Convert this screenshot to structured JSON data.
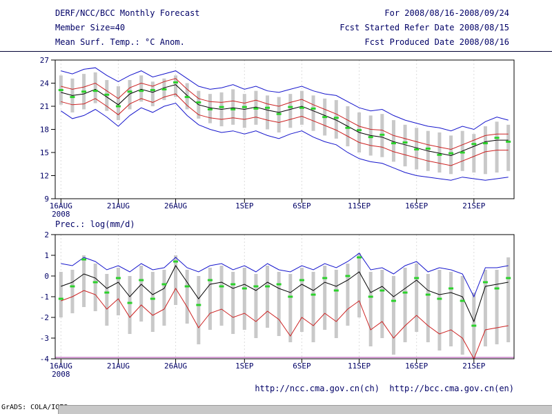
{
  "header": {
    "title": "DERF/NCC/BCC Monthly Forecast",
    "member_size": "Member Size=40",
    "for_range": "For 2008/08/16-2008/09/24",
    "fcst_start": "Fcst Started Refer Date 2008/08/15",
    "fcst_produced": "Fcst Produced Date 2008/08/16"
  },
  "footer": {
    "urls": "http://ncc.cma.gov.cn(ch)  http://bcc.cma.gov.cn(en)",
    "credit": "GrADS: COLA/IGES"
  },
  "colors": {
    "text": "#000066",
    "envelope_blue": "#1414cc",
    "quartile_red": "#cc2020",
    "mean_black": "#000000",
    "marker_green": "#2bd12b",
    "bar_gray": "#c9c9c9",
    "baseline_purple": "#aa3aaa",
    "gridline": "#dcdcdc"
  },
  "chart_data": [
    {
      "type": "line",
      "title": "Mean Surf. Temp.: °C Anom.",
      "ylim": [
        9,
        27
      ],
      "yticks": [
        27,
        24,
        21,
        18,
        15,
        12,
        9
      ],
      "grid": "vertical-dashed",
      "xticks": [
        {
          "i": 0,
          "label": "16AUG",
          "sub": "2008"
        },
        {
          "i": 5,
          "label": "21AUG"
        },
        {
          "i": 10,
          "label": "26AUG"
        },
        {
          "i": 16,
          "label": "1SEP"
        },
        {
          "i": 21,
          "label": "6SEP"
        },
        {
          "i": 26,
          "label": "11SEP"
        },
        {
          "i": 31,
          "label": "16SEP"
        },
        {
          "i": 36,
          "label": "21SEP"
        }
      ],
      "series": [
        {
          "name": "ensemble-max",
          "color": "#1414cc",
          "values": [
            25.6,
            25.2,
            25.8,
            26.0,
            25.0,
            24.2,
            25.0,
            25.6,
            24.8,
            25.2,
            25.6,
            24.6,
            23.6,
            23.2,
            23.4,
            23.8,
            23.2,
            23.6,
            23.0,
            22.8,
            23.2,
            23.6,
            23.0,
            22.6,
            22.4,
            21.6,
            20.8,
            20.4,
            20.6,
            19.8,
            19.2,
            18.8,
            18.4,
            18.2,
            17.8,
            18.4,
            18.0,
            19.0,
            19.6,
            19.2
          ]
        },
        {
          "name": "upper-quartile",
          "color": "#cc2020",
          "values": [
            23.6,
            23.2,
            23.5,
            24.0,
            23.0,
            22.0,
            23.4,
            24.0,
            23.6,
            24.2,
            24.6,
            23.2,
            22.0,
            21.6,
            21.5,
            21.7,
            21.4,
            21.8,
            21.3,
            21.0,
            21.5,
            21.9,
            21.2,
            20.6,
            20.0,
            19.2,
            18.4,
            18.0,
            17.9,
            17.2,
            16.8,
            16.4,
            16.0,
            15.7,
            15.4,
            16.0,
            16.6,
            17.2,
            17.4,
            17.4
          ]
        },
        {
          "name": "ensemble-mean",
          "color": "#000000",
          "values": [
            22.8,
            22.4,
            22.6,
            23.2,
            22.2,
            21.2,
            22.6,
            23.2,
            22.8,
            23.4,
            23.8,
            22.4,
            21.2,
            20.8,
            20.6,
            20.8,
            20.6,
            20.9,
            20.5,
            20.2,
            20.6,
            21.0,
            20.4,
            19.8,
            19.2,
            18.4,
            17.6,
            17.2,
            17.0,
            16.4,
            16.0,
            15.6,
            15.2,
            14.9,
            14.6,
            15.2,
            15.8,
            16.4,
            16.6,
            16.6
          ]
        },
        {
          "name": "lower-quartile",
          "color": "#cc2020",
          "values": [
            21.6,
            21.2,
            21.3,
            22.0,
            21.0,
            19.9,
            21.3,
            22.0,
            21.5,
            22.2,
            22.6,
            21.1,
            19.9,
            19.5,
            19.3,
            19.5,
            19.3,
            19.6,
            19.2,
            18.9,
            19.3,
            19.7,
            19.1,
            18.5,
            17.9,
            17.1,
            16.3,
            15.9,
            15.7,
            15.1,
            14.7,
            14.3,
            13.9,
            13.6,
            13.3,
            13.9,
            14.5,
            15.1,
            15.3,
            15.3
          ]
        },
        {
          "name": "ensemble-min",
          "color": "#1414cc",
          "values": [
            20.4,
            19.4,
            19.8,
            20.6,
            19.6,
            18.4,
            19.8,
            20.8,
            20.2,
            21.0,
            21.4,
            19.8,
            18.6,
            18.0,
            17.6,
            17.8,
            17.4,
            17.8,
            17.2,
            16.8,
            17.4,
            17.8,
            17.0,
            16.4,
            16.0,
            15.0,
            14.2,
            13.8,
            13.6,
            13.0,
            12.4,
            12.0,
            11.8,
            11.6,
            11.4,
            11.8,
            11.6,
            11.4,
            11.6,
            11.8
          ]
        }
      ],
      "bars": {
        "name": "member-spread-bar",
        "color": "#c9c9c9",
        "low": [
          21.2,
          20.2,
          20.6,
          21.4,
          20.4,
          19.2,
          20.6,
          21.6,
          21.0,
          21.8,
          22.2,
          20.6,
          19.4,
          18.8,
          18.4,
          18.6,
          18.2,
          18.6,
          18.0,
          17.6,
          18.2,
          18.6,
          17.8,
          17.2,
          16.8,
          15.8,
          15.0,
          14.6,
          14.4,
          13.8,
          13.2,
          12.8,
          12.6,
          12.4,
          12.2,
          12.6,
          12.4,
          12.2,
          12.4,
          12.6
        ],
        "high": [
          25.0,
          24.6,
          25.2,
          25.4,
          24.4,
          23.6,
          24.4,
          25.0,
          24.2,
          24.6,
          25.0,
          24.0,
          23.0,
          22.6,
          22.8,
          23.2,
          22.6,
          23.0,
          22.4,
          22.2,
          22.6,
          23.0,
          22.4,
          22.0,
          21.8,
          21.0,
          20.2,
          19.8,
          20.0,
          19.2,
          18.6,
          18.2,
          17.8,
          17.6,
          17.2,
          17.8,
          17.4,
          18.4,
          19.0,
          18.6
        ]
      },
      "markers": {
        "name": "member-median-mark",
        "color": "#2bd12b",
        "values": [
          23.1,
          22.2,
          22.9,
          23.0,
          22.5,
          21.0,
          22.9,
          23.0,
          23.1,
          23.2,
          24.1,
          22.2,
          21.5,
          20.6,
          20.9,
          20.6,
          20.9,
          20.7,
          20.8,
          20.0,
          20.9,
          20.8,
          20.7,
          19.6,
          19.5,
          18.2,
          17.9,
          17.0,
          17.3,
          16.2,
          16.3,
          15.4,
          15.5,
          14.7,
          14.9,
          15.0,
          16.1,
          16.2,
          16.9,
          16.4
        ]
      }
    },
    {
      "type": "line",
      "title": "Prec.: log(mm/d)",
      "ylim": [
        -4,
        2
      ],
      "yticks": [
        2,
        1,
        0,
        -1,
        -2,
        -3,
        -4
      ],
      "grid": "vertical-dashed",
      "baseline": {
        "name": "lower-bound-line",
        "value": -4,
        "color": "#aa3aaa"
      },
      "xticks": [
        {
          "i": 0,
          "label": "16AUG",
          "sub": "2008"
        },
        {
          "i": 5,
          "label": "21AUG"
        },
        {
          "i": 10,
          "label": "26AUG"
        },
        {
          "i": 16,
          "label": "1SEP"
        },
        {
          "i": 21,
          "label": "6SEP"
        },
        {
          "i": 26,
          "label": "11SEP"
        },
        {
          "i": 31,
          "label": "16SEP"
        },
        {
          "i": 36,
          "label": "21SEP"
        }
      ],
      "series": [
        {
          "name": "ensemble-max",
          "color": "#1414cc",
          "values": [
            0.6,
            0.5,
            0.9,
            0.7,
            0.3,
            0.5,
            0.2,
            0.6,
            0.3,
            0.4,
            0.9,
            0.4,
            0.2,
            0.5,
            0.6,
            0.3,
            0.5,
            0.2,
            0.6,
            0.3,
            0.2,
            0.5,
            0.3,
            0.6,
            0.4,
            0.7,
            1.1,
            0.3,
            0.4,
            0.1,
            0.5,
            0.7,
            0.2,
            0.4,
            0.3,
            0.1,
            -1.0,
            0.4,
            0.4,
            0.5
          ]
        },
        {
          "name": "ensemble-mean",
          "color": "#000000",
          "values": [
            -0.5,
            -0.3,
            0.1,
            -0.1,
            -0.6,
            -0.3,
            -1.0,
            -0.4,
            -0.9,
            -0.6,
            0.5,
            -0.3,
            -1.1,
            -0.4,
            -0.3,
            -0.6,
            -0.4,
            -0.7,
            -0.3,
            -0.6,
            -0.8,
            -0.4,
            -0.7,
            -0.3,
            -0.5,
            -0.2,
            0.2,
            -0.8,
            -0.5,
            -1.0,
            -0.6,
            -0.2,
            -0.7,
            -0.9,
            -0.8,
            -1.0,
            -2.2,
            -0.5,
            -0.4,
            -0.3
          ]
        },
        {
          "name": "ensemble-min",
          "color": "#cc2020",
          "values": [
            -1.2,
            -1.0,
            -0.7,
            -0.9,
            -1.6,
            -1.1,
            -2.0,
            -1.4,
            -1.9,
            -1.6,
            -0.6,
            -1.5,
            -2.5,
            -1.8,
            -1.6,
            -2.0,
            -1.8,
            -2.2,
            -1.7,
            -2.1,
            -2.9,
            -2.0,
            -2.4,
            -1.8,
            -2.2,
            -1.6,
            -1.2,
            -2.6,
            -2.2,
            -3.0,
            -2.4,
            -1.9,
            -2.4,
            -2.8,
            -2.6,
            -3.0,
            -4.0,
            -2.6,
            -2.5,
            -2.4
          ]
        }
      ],
      "bars": {
        "name": "member-spread-bar",
        "color": "#c9c9c9",
        "low": [
          -2.0,
          -1.8,
          -1.5,
          -1.7,
          -2.4,
          -1.9,
          -2.8,
          -2.2,
          -2.7,
          -2.4,
          -1.4,
          -2.3,
          -3.3,
          -2.6,
          -2.4,
          -2.8,
          -2.6,
          -3.0,
          -2.5,
          -2.9,
          -3.2,
          -2.7,
          -3.2,
          -2.6,
          -3.0,
          -2.4,
          -2.0,
          -3.4,
          -3.0,
          -3.8,
          -3.2,
          -2.7,
          -3.2,
          -3.6,
          -3.4,
          -3.8,
          -4.0,
          -3.4,
          -3.3,
          -3.2
        ],
        "high": [
          0.2,
          0.3,
          1.0,
          0.6,
          0.1,
          0.4,
          0.0,
          0.5,
          0.2,
          0.3,
          1.0,
          0.3,
          0.0,
          0.4,
          0.5,
          0.2,
          0.4,
          0.1,
          0.5,
          0.2,
          0.1,
          0.4,
          0.2,
          0.5,
          0.3,
          0.6,
          1.1,
          0.2,
          0.3,
          0.0,
          0.4,
          0.6,
          0.1,
          0.3,
          0.2,
          0.0,
          -0.8,
          0.3,
          0.3,
          0.9
        ]
      },
      "markers": {
        "name": "member-median-mark",
        "color": "#2bd12b",
        "values": [
          -1.1,
          -0.5,
          0.8,
          -0.3,
          -0.8,
          -0.1,
          -1.3,
          -0.2,
          -1.1,
          -0.4,
          0.7,
          -0.5,
          -1.4,
          -0.2,
          -0.5,
          -0.4,
          -0.6,
          -0.5,
          -0.5,
          -0.4,
          -1.0,
          -0.2,
          -0.9,
          -0.1,
          -0.7,
          0.0,
          0.9,
          -1.0,
          -0.7,
          -1.2,
          -0.8,
          -0.1,
          -0.9,
          -1.1,
          -0.6,
          -1.2,
          -2.4,
          -0.3,
          -0.6,
          -0.1
        ]
      }
    }
  ]
}
